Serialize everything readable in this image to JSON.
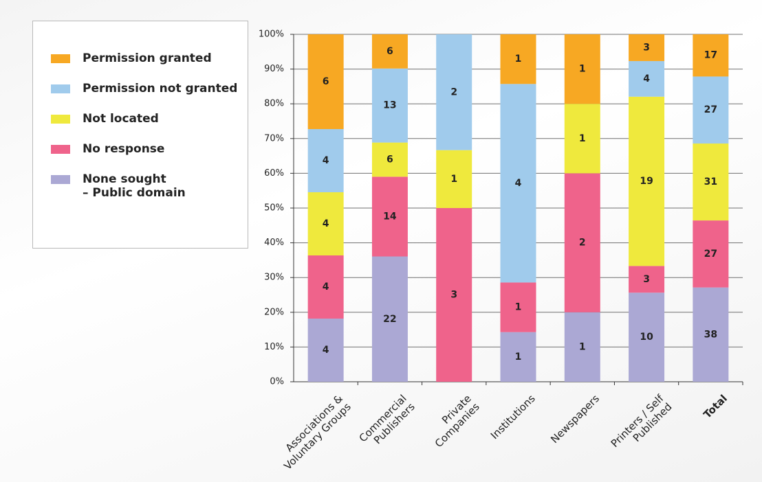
{
  "chart_data": {
    "type": "bar",
    "stacking": "percent",
    "categories": [
      "Associations &\nVoluntary Groups",
      "Commercial\nPublishers",
      "Private\nCompanies",
      "Institutions",
      "Newspapers",
      "Printers / Self\nPublished",
      "Total"
    ],
    "series": [
      {
        "name": "None sought\n– Public domain",
        "color": "#aba8d4",
        "values": [
          4,
          22,
          null,
          1,
          1,
          10,
          38
        ]
      },
      {
        "name": "No response",
        "color": "#ef638b",
        "values": [
          4,
          14,
          3,
          1,
          2,
          3,
          27
        ]
      },
      {
        "name": "Not located",
        "color": "#efe93d",
        "values": [
          4,
          6,
          1,
          null,
          1,
          19,
          31
        ]
      },
      {
        "name": "Permission not granted",
        "color": "#a0cbec",
        "values": [
          4,
          13,
          2,
          4,
          null,
          4,
          27
        ]
      },
      {
        "name": "Permission granted",
        "color": "#f7a823",
        "values": [
          6,
          6,
          null,
          1,
          1,
          3,
          17
        ]
      }
    ],
    "ylim": [
      0,
      100
    ],
    "yticks": [
      {
        "value": 0,
        "label": "0%"
      },
      {
        "value": 10,
        "label": "10%"
      },
      {
        "value": 20,
        "label": "20%"
      },
      {
        "value": 30,
        "label": "30%"
      },
      {
        "value": 40,
        "label": "40%"
      },
      {
        "value": 50,
        "label": "50%"
      },
      {
        "value": 60,
        "label": "60%"
      },
      {
        "value": 70,
        "label": "70%"
      },
      {
        "value": 80,
        "label": "80%"
      },
      {
        "value": 90,
        "label": "90%"
      },
      {
        "value": 100,
        "label": "100%"
      }
    ],
    "grid": true
  }
}
